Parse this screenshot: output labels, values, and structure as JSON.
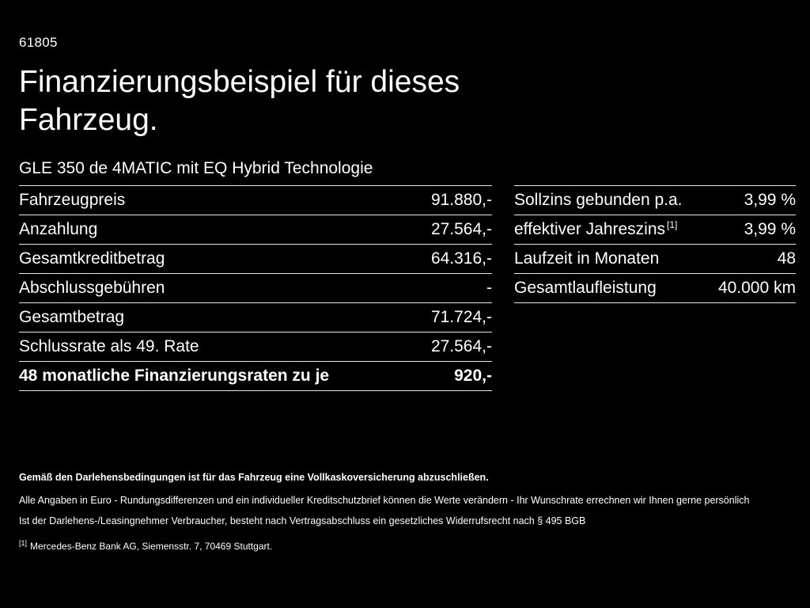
{
  "page": {
    "doc_number": "61805",
    "title": "Finanzierungsbeispiel für dieses Fahrzeug.",
    "subtitle": "GLE 350 de 4MATIC mit EQ Hybrid Technologie"
  },
  "left_table": {
    "rows": [
      {
        "label": "Fahrzeugpreis",
        "value": "91.880,-"
      },
      {
        "label": "Anzahlung",
        "value": "27.564,-"
      },
      {
        "label": "Gesamtkreditbetrag",
        "value": "64.316,-"
      },
      {
        "label": "Abschlussgebühren",
        "value": "-"
      },
      {
        "label": "Gesamtbetrag",
        "value": "71.724,-"
      },
      {
        "label": "Schlussrate als 49. Rate",
        "value": "27.564,-"
      },
      {
        "label": "48 monatliche Finanzierungsraten zu je",
        "value": "920,-"
      }
    ]
  },
  "right_table": {
    "rows": [
      {
        "label": "Sollzins gebunden p.a.",
        "value": "3,99 %"
      },
      {
        "label": "effektiver Jahreszins",
        "sup": "[1]",
        "value": "3,99 %"
      },
      {
        "label": "Laufzeit in Monaten",
        "value": "48"
      },
      {
        "label": "Gesamtlaufleistung",
        "value": "40.000 km"
      }
    ]
  },
  "footer": {
    "bold_note": "Gemäß den Darlehensbedingungen ist für das Fahrzeug eine Vollkaskoversicherung abzuschließen.",
    "note_1": "Alle Angaben in Euro - Rundungsdifferenzen und ein individueller Kreditschutzbrief können die Werte verändern - Ihr Wunschrate errechnen wir Ihnen gerne persönlich",
    "note_2": "Ist der Darlehens-/Leasingnehmer Verbraucher, besteht nach Vertragsabschluss ein gesetzliches Widerrufsrecht nach § 495 BGB",
    "footnote_marker": "[1]",
    "footnote_text": "Mercedes-Benz Bank AG, Siemensstr. 7, 70469 Stuttgart."
  },
  "colors": {
    "background": "#000000",
    "text": "#ffffff",
    "divider": "#e8e8e8"
  }
}
